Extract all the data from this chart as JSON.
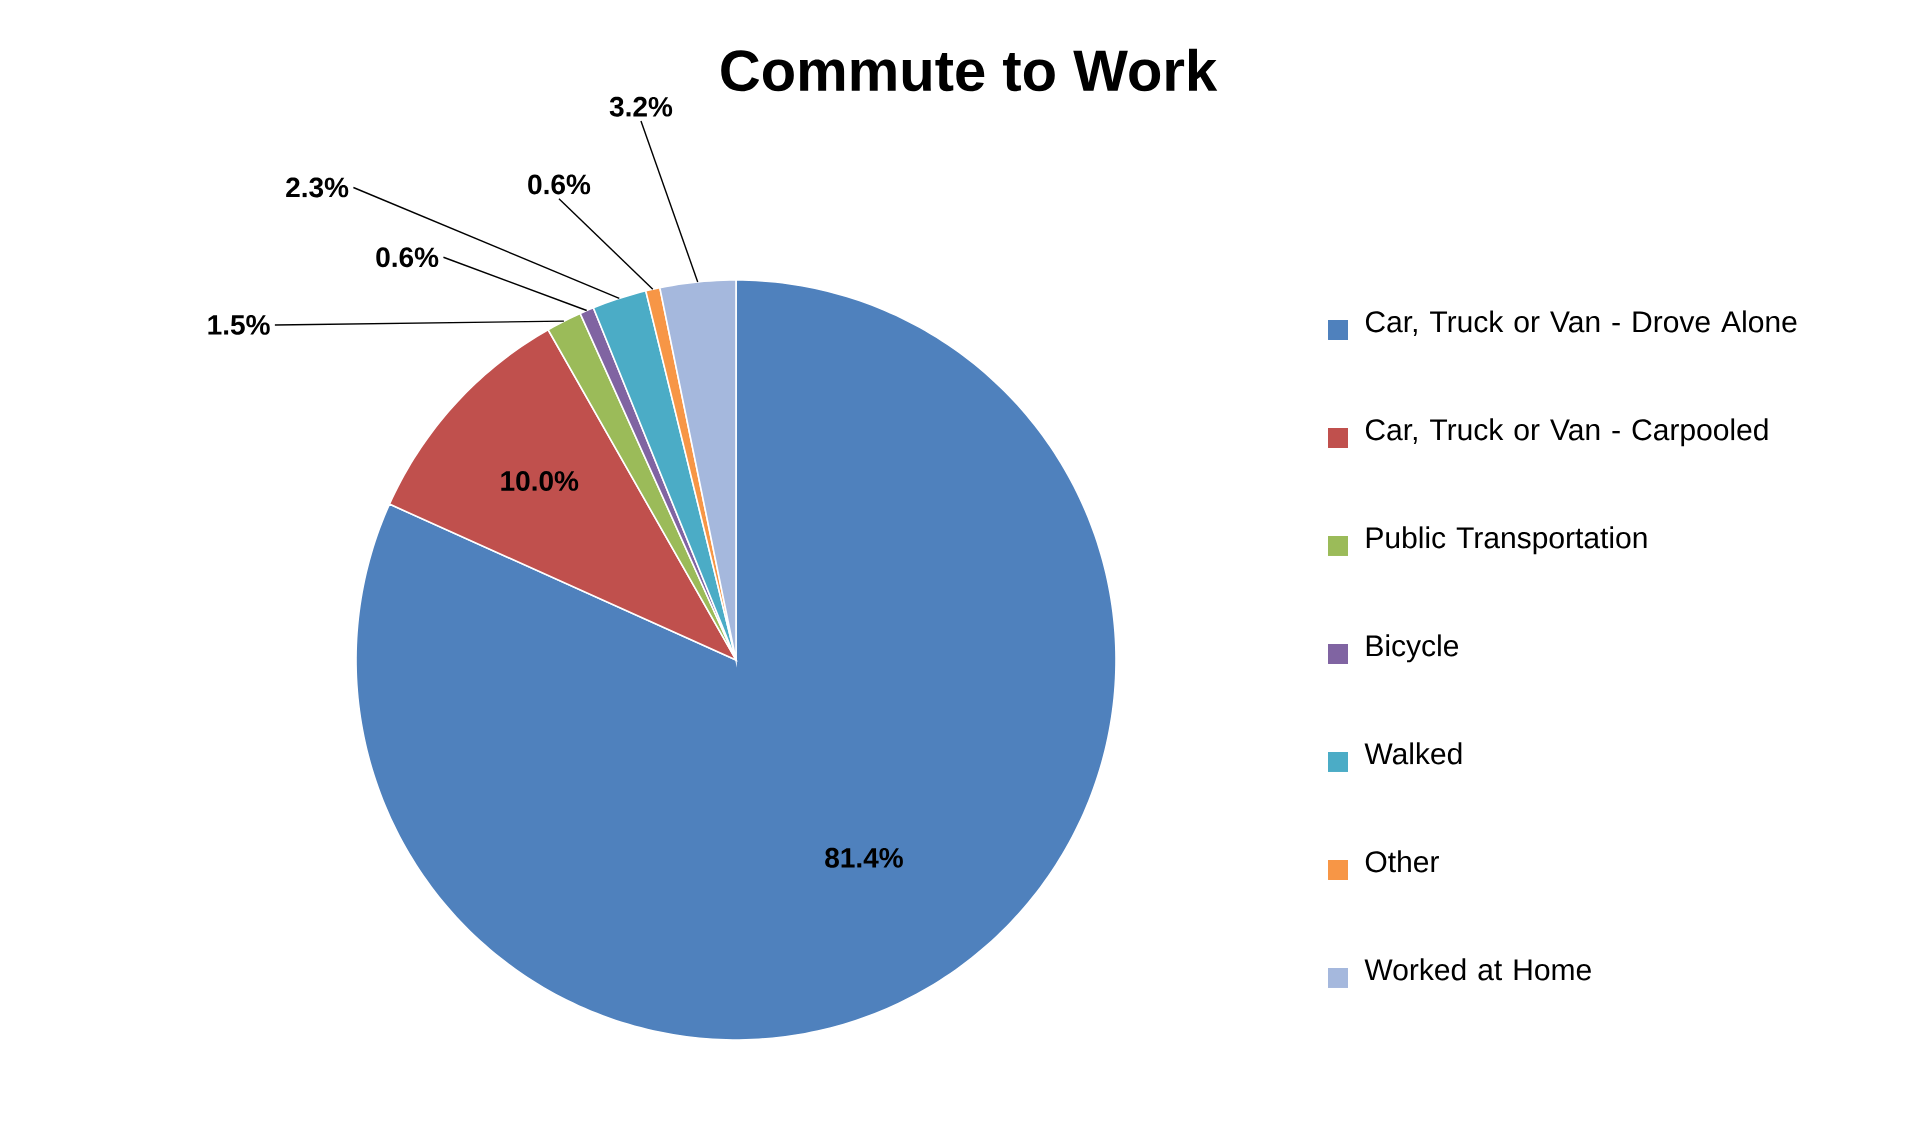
{
  "chart_data": {
    "type": "pie",
    "title": "Commute to Work",
    "legend": "right",
    "categories": [
      "Car, Truck or Van - Drove Alone",
      "Car, Truck or Van - Carpooled",
      "Public Transportation",
      "Bicycle",
      "Walked",
      "Other",
      "Worked at Home"
    ],
    "values": [
      81.4,
      10.0,
      1.5,
      0.6,
      2.3,
      0.6,
      3.2
    ],
    "value_labels": [
      "81.4%",
      "10.0%",
      "1.5%",
      "0.6%",
      "2.3%",
      "0.6%",
      "3.2%"
    ],
    "colors": [
      "#4f81bd",
      "#c0504d",
      "#9bbb59",
      "#8064a2",
      "#4bacc6",
      "#f79646",
      "#a5b8dd"
    ]
  }
}
